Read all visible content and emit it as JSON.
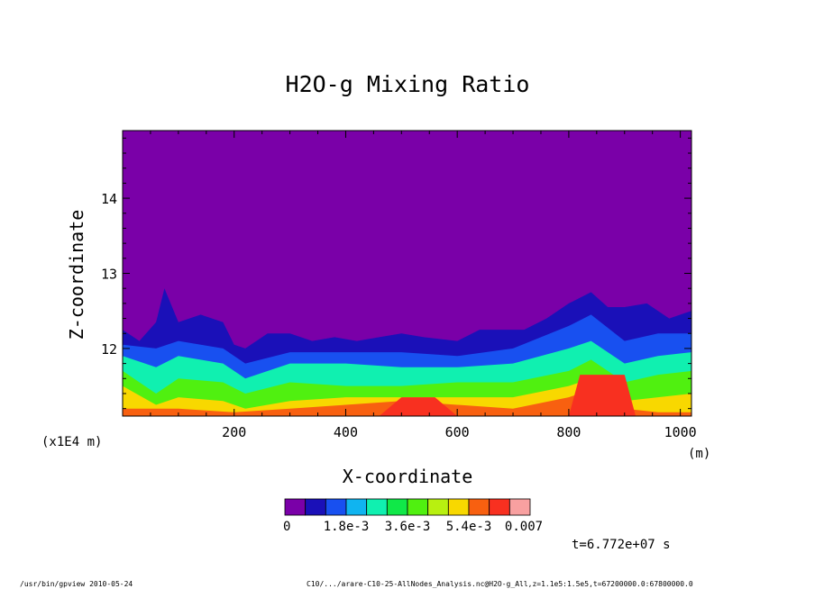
{
  "chart_data": {
    "type": "heatmap",
    "title": "H2O-g Mixing Ratio",
    "xlabel": "X-coordinate",
    "ylabel": "Z-coordinate",
    "x_unit": "(m)",
    "y_scale_note": "(x1E4 m)",
    "xlim": [
      0,
      1020
    ],
    "ylim": [
      11.1,
      14.9
    ],
    "x_ticks": [
      "200",
      "400",
      "600",
      "800",
      "1000"
    ],
    "x_tick_values": [
      200,
      400,
      600,
      800,
      1000
    ],
    "y_ticks": [
      "12",
      "13",
      "14"
    ],
    "y_tick_values": [
      12,
      13,
      14
    ],
    "colorbar": {
      "min": 0,
      "max": 0.007,
      "levels": 11,
      "labels": [
        "0",
        "1.8e-3",
        "3.6e-3",
        "5.4e-3",
        "0.007"
      ],
      "colors": [
        "#7a00a8",
        "#1a10b8",
        "#1850f0",
        "#10b4f0",
        "#10f0b0",
        "#10e848",
        "#50f010",
        "#b8f010",
        "#f8d800",
        "#f86010",
        "#f83020",
        "#f8a0a0"
      ]
    },
    "contour_boundaries_by_level": [
      {
        "level": 1,
        "x": [
          0,
          30,
          60,
          75,
          100,
          140,
          180,
          200,
          220,
          260,
          300,
          340,
          380,
          420,
          460,
          500,
          540,
          600,
          640,
          680,
          720,
          760,
          800,
          840,
          870,
          900,
          940,
          980,
          1020
        ],
        "z": [
          12.25,
          12.1,
          12.35,
          12.8,
          12.35,
          12.45,
          12.35,
          12.05,
          12.0,
          12.2,
          12.2,
          12.1,
          12.15,
          12.1,
          12.15,
          12.2,
          12.15,
          12.1,
          12.25,
          12.25,
          12.25,
          12.4,
          12.6,
          12.75,
          12.55,
          12.55,
          12.6,
          12.4,
          12.5
        ]
      },
      {
        "level": 2,
        "x": [
          0,
          60,
          100,
          180,
          220,
          300,
          400,
          500,
          600,
          700,
          800,
          840,
          900,
          960,
          1020
        ],
        "z": [
          12.05,
          12.0,
          12.1,
          12.0,
          11.8,
          11.95,
          11.95,
          11.95,
          11.9,
          12.0,
          12.3,
          12.45,
          12.1,
          12.2,
          12.2
        ]
      },
      {
        "level": 4,
        "x": [
          0,
          60,
          100,
          180,
          220,
          300,
          400,
          500,
          600,
          700,
          800,
          840,
          900,
          960,
          1020
        ],
        "z": [
          11.9,
          11.75,
          11.9,
          11.8,
          11.6,
          11.8,
          11.8,
          11.75,
          11.75,
          11.8,
          12.0,
          12.1,
          11.8,
          11.9,
          11.95
        ]
      },
      {
        "level": 6,
        "x": [
          0,
          60,
          100,
          180,
          220,
          300,
          400,
          500,
          600,
          700,
          800,
          840,
          900,
          960,
          1020
        ],
        "z": [
          11.7,
          11.4,
          11.6,
          11.55,
          11.4,
          11.55,
          11.5,
          11.5,
          11.55,
          11.55,
          11.7,
          11.85,
          11.55,
          11.65,
          11.7
        ]
      },
      {
        "level": 8,
        "x": [
          0,
          60,
          100,
          180,
          220,
          300,
          400,
          500,
          600,
          700,
          800,
          840,
          900,
          960,
          1020
        ],
        "z": [
          11.5,
          11.25,
          11.35,
          11.3,
          11.2,
          11.3,
          11.35,
          11.35,
          11.35,
          11.35,
          11.5,
          11.6,
          11.3,
          11.35,
          11.4
        ]
      },
      {
        "level": 9,
        "x": [
          0,
          100,
          200,
          300,
          400,
          500,
          600,
          700,
          800,
          840,
          900,
          960,
          1020
        ],
        "z": [
          11.2,
          11.2,
          11.15,
          11.2,
          11.25,
          11.3,
          11.25,
          11.2,
          11.35,
          11.45,
          11.2,
          11.15,
          11.15
        ]
      },
      {
        "level": 10,
        "x": [
          0,
          300,
          460,
          500,
          560,
          600,
          800,
          820,
          900,
          920,
          1020
        ],
        "z": [
          11.1,
          11.1,
          11.1,
          11.35,
          11.35,
          11.1,
          11.1,
          11.65,
          11.65,
          11.1,
          11.1
        ]
      }
    ]
  },
  "time_label": "t=6.772e+07 s",
  "footer": {
    "left": "/usr/bin/gpview  2010-05-24",
    "right": "C10/.../arare-C10-25-AllNodes_Analysis.nc@H2O-g_All,z=1.1e5:1.5e5,t=67200000.0:67800000.0"
  }
}
